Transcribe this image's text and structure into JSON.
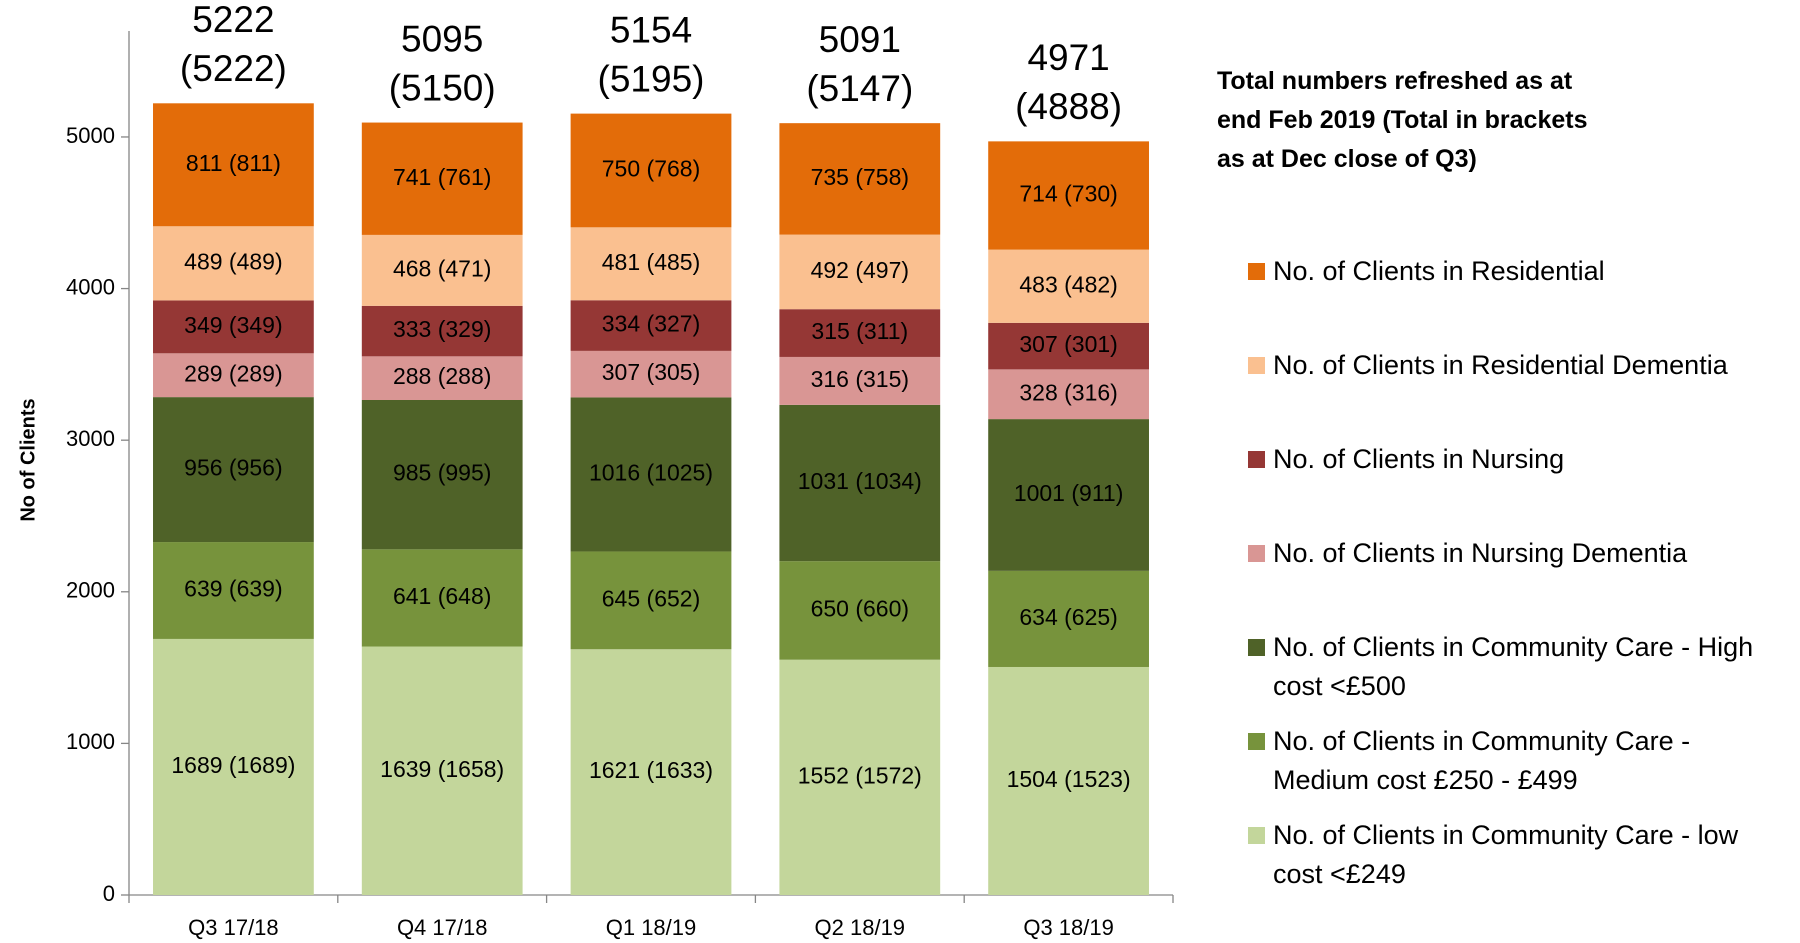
{
  "chart_data": {
    "type": "stacked_bar",
    "y_label": "No of Clients",
    "note": [
      "Total numbers refreshed as at end Feb 2019",
      "(Total in brackets as at Dec close of Q3)"
    ],
    "categories": [
      "Q3 17/18",
      "Q4 17/18",
      "Q1 18/19",
      "Q2 18/19",
      "Q3 18/19"
    ],
    "totals": [
      5222,
      5095,
      5154,
      5091,
      4971
    ],
    "totals_bracketed": [
      "(5222)",
      "(5150)",
      "(5195)",
      "(5147)",
      "(4888)"
    ],
    "series": [
      {
        "name": "No. of Clients in Residential",
        "color": "#e36c09",
        "values": [
          811,
          741,
          750,
          735,
          714
        ],
        "value_labels": [
          "811 (811)",
          "741 (761)",
          "750 (768)",
          "735 (758)",
          "714 (730)"
        ]
      },
      {
        "name": "No. of Clients in Residential Dementia",
        "color": "#fac090",
        "values": [
          489,
          468,
          481,
          492,
          483
        ],
        "value_labels": [
          "489 (489)",
          "468 (471)",
          "481 (485)",
          "492 (497)",
          "483 (482)"
        ]
      },
      {
        "name": "No. of Clients in Nursing",
        "color": "#953735",
        "values": [
          349,
          333,
          334,
          315,
          307
        ],
        "value_labels": [
          "349 (349)",
          "333 (329)",
          "334 (327)",
          "315 (311)",
          "307 (301)"
        ]
      },
      {
        "name": "No. of Clients in Nursing Dementia",
        "color": "#d99694",
        "values": [
          289,
          288,
          307,
          316,
          328
        ],
        "value_labels": [
          "289 (289)",
          "288 (288)",
          "307 (305)",
          "316 (315)",
          "328 (316)"
        ]
      },
      {
        "name": "No. of Clients in Community Care - High cost <£500",
        "color": "#4f6228",
        "values": [
          956,
          985,
          1016,
          1031,
          1001
        ],
        "value_labels": [
          "956 (956)",
          "985 (995)",
          "1016 (1025)",
          "1031 (1034)",
          "1001 (911)"
        ]
      },
      {
        "name": "No. of Clients in Community Care - Medium cost £250 - £499",
        "color": "#77933c",
        "values": [
          639,
          641,
          645,
          650,
          634
        ],
        "value_labels": [
          "639 (639)",
          "641 (648)",
          "645 (652)",
          "650 (660)",
          "634 (625)"
        ]
      },
      {
        "name": "No. of Clients in Community Care - low cost <£249",
        "color": "#c3d69b",
        "values": [
          1689,
          1639,
          1621,
          1552,
          1504
        ],
        "value_labels": [
          "1689 (1689)",
          "1639 (1658)",
          "1621 (1633)",
          "1552 (1572)",
          "1504 (1523)"
        ]
      }
    ],
    "ylim": [
      0,
      5600
    ],
    "yticks": [
      0,
      1000,
      2000,
      3000,
      4000,
      5000
    ],
    "grid": false,
    "legend": "right"
  }
}
